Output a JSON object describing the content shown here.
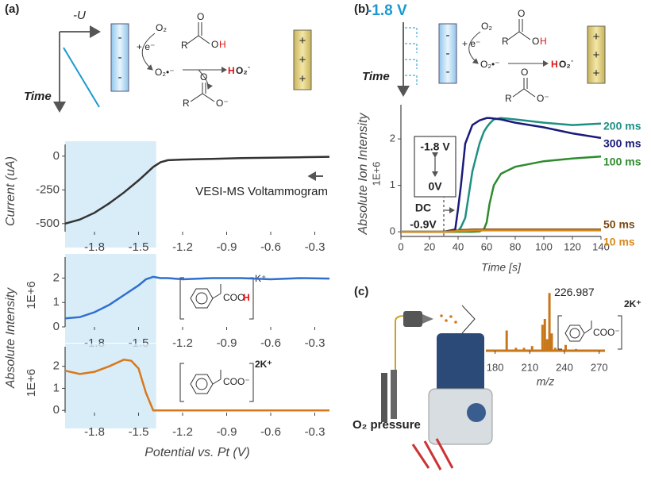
{
  "panels": [
    "(a)",
    "(b)",
    "(c)"
  ],
  "schematic": {
    "neg_u": "-U",
    "time": "Time",
    "o2": "O₂",
    "electron": "+ e⁻",
    "superoxide": "O₂•⁻",
    "h": "H",
    "ho2_rest": "O₂˙",
    "o": "O",
    "r": "R",
    "o_minus": "O⁻",
    "minus": "-",
    "plus": "+",
    "potential": "-1.8 V",
    "pressure": "O₂ pressure",
    "coo": "COO",
    "coo_minus": "COO⁻",
    "k": "K⁺",
    "k2": "2K⁺"
  },
  "chart_data": [
    {
      "type": "line",
      "ylabel": "Current (uA)",
      "annotation": "VESI-MS Voltammogram",
      "color": "#333333",
      "shade_xlim": [
        -2.0,
        -1.38
      ],
      "x": [
        -2.0,
        -1.9,
        -1.8,
        -1.7,
        -1.6,
        -1.5,
        -1.45,
        -1.4,
        -1.35,
        -1.3,
        -1.2,
        -1.0,
        -0.8,
        -0.6,
        -0.4,
        -0.2
      ],
      "values": [
        -500,
        -470,
        -420,
        -350,
        -270,
        -180,
        -130,
        -80,
        -45,
        -30,
        -25,
        -20,
        -15,
        -12,
        -8,
        -5
      ],
      "xlim": [
        -2.0,
        -0.2
      ],
      "ylim": [
        -560,
        40
      ],
      "xticks": [
        -1.8,
        -1.5,
        -1.2,
        -0.9,
        -0.6,
        -0.3
      ],
      "yticks": [
        0,
        -250,
        -500
      ]
    },
    {
      "type": "line",
      "ylabel": "Absolute Intensity",
      "multiplier": "1E+6",
      "color": "#2f6fcf",
      "shade_xlim": [
        -2.0,
        -1.38
      ],
      "x": [
        -2.0,
        -1.9,
        -1.8,
        -1.7,
        -1.6,
        -1.5,
        -1.45,
        -1.4,
        -1.35,
        -1.3,
        -1.2,
        -1.0,
        -0.8,
        -0.6,
        -0.4,
        -0.2
      ],
      "values": [
        0.35,
        0.4,
        0.6,
        0.9,
        1.3,
        1.7,
        1.95,
        2.05,
        2.0,
        2.0,
        1.95,
        2.0,
        2.0,
        1.95,
        2.0,
        1.98
      ],
      "xlim": [
        -2.0,
        -0.2
      ],
      "ylim": [
        0,
        2.6
      ],
      "xticks": [
        -1.8,
        -1.5,
        -1.2,
        -0.9,
        -0.6,
        -0.3
      ],
      "yticks": [
        0,
        1,
        2
      ]
    },
    {
      "type": "line",
      "xlabel": "Potential vs. Pt (V)",
      "multiplier": "1E+6",
      "color": "#d9781a",
      "shade_xlim": [
        -2.0,
        -1.38
      ],
      "x": [
        -2.0,
        -1.9,
        -1.8,
        -1.7,
        -1.6,
        -1.55,
        -1.5,
        -1.45,
        -1.4,
        -1.35,
        -1.2,
        -1.0,
        -0.8,
        -0.6,
        -0.4,
        -0.2
      ],
      "values": [
        1.8,
        1.65,
        1.75,
        2.0,
        2.3,
        2.25,
        1.9,
        0.8,
        0,
        0,
        0,
        0,
        0,
        0,
        0,
        0
      ],
      "xlim": [
        -2.0,
        -0.2
      ],
      "ylim": [
        -0.1,
        2.6
      ],
      "xticks": [
        -1.8,
        -1.5,
        -1.2,
        -0.9,
        -0.6,
        -0.3
      ],
      "yticks": [
        0,
        1,
        2
      ]
    },
    {
      "type": "line",
      "ylabel": "Absolute Ion Intensity",
      "multiplier": "1E+6",
      "xlabel": "Time [s]",
      "marker_x": 30,
      "annotations": [
        "-1.8 V",
        "0V",
        "DC",
        "-0.9V"
      ],
      "x": [
        0,
        10,
        20,
        30,
        38,
        40,
        42,
        45,
        50,
        55,
        58,
        60,
        62,
        65,
        70,
        80,
        100,
        120,
        140
      ],
      "series": [
        {
          "name": "200 ms",
          "color": "#1f8f84",
          "values": [
            0,
            0,
            0,
            0,
            0,
            0.02,
            0.1,
            0.3,
            1.3,
            1.9,
            2.15,
            2.25,
            2.33,
            2.42,
            2.45,
            2.42,
            2.35,
            2.3,
            2.33
          ]
        },
        {
          "name": "300 ms",
          "color": "#1a1a7a",
          "values": [
            0,
            0,
            0,
            0,
            0.05,
            0.5,
            1.0,
            1.9,
            2.3,
            2.4,
            2.43,
            2.45,
            2.45,
            2.44,
            2.42,
            2.35,
            2.25,
            2.12,
            2.02
          ]
        },
        {
          "name": "100 ms",
          "color": "#2e8b2e",
          "values": [
            0,
            0,
            0,
            0,
            0,
            0,
            0,
            0,
            0,
            0.01,
            0.05,
            0.2,
            0.6,
            1.0,
            1.25,
            1.4,
            1.52,
            1.58,
            1.62
          ]
        },
        {
          "name": "50 ms",
          "color": "#7a4a10",
          "values": [
            0,
            0,
            0,
            0,
            0.02,
            0.03,
            0.04,
            0.04,
            0.05,
            0.05,
            0.05,
            0.05,
            0.05,
            0.05,
            0.05,
            0.05,
            0.05,
            0.05,
            0.05
          ]
        },
        {
          "name": "10 ms",
          "color": "#d98a1c",
          "values": [
            0,
            0,
            0,
            0,
            0.01,
            0.02,
            0.02,
            0.02,
            0.03,
            0.03,
            0.03,
            0.03,
            0.03,
            0.03,
            0.03,
            0.03,
            0.03,
            0.03,
            0.03
          ]
        }
      ],
      "xlim": [
        0,
        140
      ],
      "ylim": [
        -0.1,
        2.6
      ],
      "xticks": [
        0,
        20,
        40,
        60,
        80,
        100,
        120,
        140
      ],
      "yticks": [
        0,
        1,
        2
      ]
    },
    {
      "type": "bar",
      "xlabel": "m/z",
      "color": "#c8761a",
      "x": [
        190,
        198,
        205,
        212,
        221,
        223,
        225,
        226.987,
        229,
        232,
        241,
        250
      ],
      "values": [
        0.35,
        0.05,
        0.05,
        0.08,
        0.45,
        0.55,
        0.2,
        1.0,
        0.3,
        0.05,
        0.1,
        0.03
      ],
      "xlim": [
        172,
        275
      ],
      "ylim": [
        0,
        1.1
      ],
      "xticks": [
        180,
        210,
        240,
        270
      ]
    }
  ]
}
